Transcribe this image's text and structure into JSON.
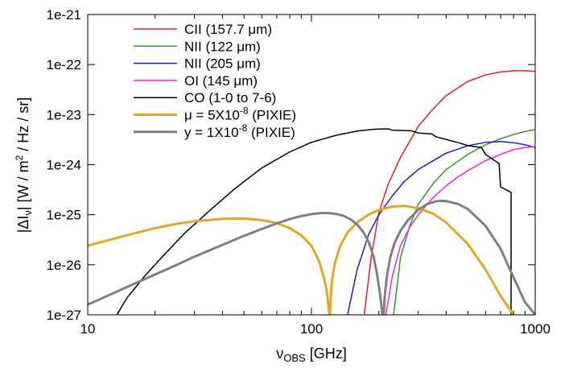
{
  "chart_data": {
    "type": "line",
    "xlabel": "ν",
    "xlabel_sub": "OBS",
    "xlabel_unit": "[GHz]",
    "ylabel": "|ΔI",
    "ylabel_sub": "ν",
    "ylabel_rest": "| [W / m",
    "ylabel_sup": "2",
    "ylabel_tail": " / Hz / sr]",
    "x_scale": "log",
    "y_scale": "log",
    "xlim": [
      10,
      1000
    ],
    "ylim": [
      1e-27,
      1e-21
    ],
    "x_ticks": [
      10,
      100,
      1000
    ],
    "x_tick_labels": [
      "10",
      "100",
      "1000"
    ],
    "y_ticks": [
      1e-27,
      1e-26,
      1e-25,
      1e-24,
      1e-23,
      1e-22,
      1e-21
    ],
    "y_tick_labels": [
      "1e-27",
      "1e-26",
      "1e-25",
      "1e-24",
      "1e-23",
      "1e-22",
      "1e-21"
    ],
    "grid": false,
    "legend_position": "top-left",
    "series": [
      {
        "name": "CII (157.7 μm)",
        "label_parts": [
          "CII (157.7 ",
          "μ",
          "m)"
        ],
        "color": "#e8201e",
        "stroke": 1.5,
        "x": [
          172,
          185,
          200,
          220,
          250,
          300,
          350,
          400,
          500,
          600,
          700,
          800,
          900,
          1000
        ],
        "y": [
          1e-27,
          1.4e-26,
          1.1e-25,
          4e-25,
          1.4e-24,
          5.8e-24,
          1.3e-23,
          2.4e-23,
          4.6e-23,
          6.2e-23,
          7.1e-23,
          7.5e-23,
          7.5e-23,
          7.3e-23
        ]
      },
      {
        "name": "NII (122 μm)",
        "label_parts": [
          "NII (122 ",
          "μ",
          "m)"
        ],
        "color": "#2e9a2e",
        "stroke": 1.5,
        "x": [
          233,
          250,
          275,
          300,
          350,
          400,
          500,
          600,
          700,
          800,
          900,
          1000
        ],
        "y": [
          1e-27,
          1.4e-26,
          6e-26,
          1.6e-25,
          4.2e-25,
          8e-25,
          1.6e-24,
          2.5e-24,
          3.3e-24,
          4e-24,
          4.6e-24,
          5e-24
        ]
      },
      {
        "name": "NII (205 μm)",
        "label_parts": [
          "NII (205 μm)"
        ],
        "color": "#1a1ae6",
        "stroke": 1.5,
        "x": [
          145,
          160,
          180,
          200,
          230,
          260,
          300,
          350,
          400,
          500,
          600,
          700,
          800,
          900,
          1000
        ],
        "y": [
          1e-27,
          8e-27,
          4e-26,
          1e-25,
          2.4e-25,
          4.6e-25,
          8e-25,
          1.2e-24,
          1.7e-24,
          2.4e-24,
          2.8e-24,
          2.9e-24,
          2.75e-24,
          2.5e-24,
          2.2e-24
        ]
      },
      {
        "name": "OI (145 μm)",
        "label_parts": [
          "OI (145 ",
          "μ",
          "m)"
        ],
        "color": "#ee22ee",
        "stroke": 1.5,
        "x": [
          215,
          230,
          250,
          275,
          300,
          350,
          400,
          450,
          500,
          600,
          700,
          800,
          900,
          1000
        ],
        "y": [
          1e-27,
          6e-27,
          2.4e-26,
          5.6e-26,
          1e-25,
          2.2e-25,
          3.8e-25,
          5.6e-25,
          7.6e-25,
          1.2e-24,
          1.6e-24,
          2e-24,
          2.2e-24,
          2.3e-24
        ]
      },
      {
        "name": "CO (1-0 to 7-6)",
        "label_parts": [
          "CO (1-0 to 7-6)"
        ],
        "color": "#000000",
        "stroke": 1.5,
        "x": [
          13.5,
          15,
          18,
          22,
          27,
          35,
          45,
          60,
          80,
          100,
          130,
          160,
          190,
          220,
          230,
          280,
          300,
          345,
          360,
          400,
          460,
          500,
          575,
          600,
          690,
          700,
          780,
          780
        ],
        "y": [
          1e-27,
          2.2e-27,
          6e-27,
          1.6e-26,
          4.2e-26,
          1.2e-25,
          3.2e-25,
          8.6e-25,
          1.8e-24,
          2.8e-24,
          3.9e-24,
          4.7e-24,
          5.1e-24,
          5.2e-24,
          4.9e-24,
          4.75e-24,
          4.3e-24,
          4.1e-24,
          3.6e-24,
          3.2e-24,
          2.7e-24,
          2.4e-24,
          2.2e-24,
          1.6e-24,
          1.05e-24,
          3.6e-25,
          2.8e-25,
          1e-27
        ]
      },
      {
        "name": "μ = 5X10^-8 (PIXIE)",
        "label_parts": [
          "μ = 5X10",
          "-8",
          " (PIXIE)"
        ],
        "color": "#e0a824",
        "stroke": 3,
        "x": [
          10,
          12,
          15,
          20,
          25,
          30,
          40,
          50,
          60,
          70,
          80,
          90,
          100,
          108,
          113,
          116,
          118,
          119.5,
          120.5,
          121,
          121.7,
          122.2,
          123,
          125,
          128,
          135,
          145,
          160,
          180,
          200,
          230,
          260,
          300,
          350,
          400,
          500,
          600,
          700,
          800
        ],
        "y": [
          2.4e-26,
          3e-26,
          3.9e-26,
          5.4e-26,
          6.6e-26,
          7.4e-26,
          8.3e-26,
          8.4e-26,
          7.8e-26,
          6.8e-26,
          5.4e-26,
          3.9e-26,
          2.4e-26,
          1.2e-26,
          6e-27,
          3.8e-27,
          2.3e-27,
          1.3e-27,
          1e-27,
          1e-27,
          1.8e-27,
          2.6e-27,
          4e-27,
          7e-27,
          1.2e-26,
          2.5e-26,
          4.4e-26,
          7e-26,
          1e-25,
          1.25e-25,
          1.45e-25,
          1.5e-25,
          1.35e-25,
          1.05e-25,
          7e-26,
          2.6e-26,
          8e-27,
          2.4e-27,
          1e-27
        ]
      },
      {
        "name": "y = 1X10^-8 (PIXIE)",
        "label_parts": [
          "y = 1X10",
          "-8",
          " (PIXIE)"
        ],
        "color": "#808080",
        "stroke": 3,
        "x": [
          10,
          12,
          15,
          20,
          25,
          30,
          40,
          50,
          60,
          70,
          80,
          90,
          100,
          110,
          120,
          130,
          140,
          150,
          160,
          170,
          180,
          190,
          197,
          202,
          205,
          207,
          208,
          209,
          210,
          211,
          212,
          214,
          218,
          225,
          235,
          250,
          270,
          300,
          330,
          360,
          380,
          400,
          450,
          500,
          600,
          700,
          800,
          900,
          1000
        ],
        "y": [
          1.6e-27,
          2.3e-27,
          3.6e-27,
          6.4e-27,
          1e-26,
          1.45e-26,
          2.5e-26,
          3.8e-26,
          5.2e-26,
          6.7e-26,
          8.2e-26,
          9.4e-26,
          1.03e-25,
          1.08e-25,
          1.08e-25,
          1.03e-25,
          9.4e-26,
          8e-26,
          6.4e-26,
          4.6e-26,
          2.9e-26,
          1.4e-26,
          6e-27,
          2.8e-27,
          1.7e-27,
          1.1e-27,
          1e-27,
          1e-27,
          1e-27,
          1.2e-27,
          2e-27,
          3.2e-27,
          6.4e-27,
          1.4e-26,
          2.7e-26,
          4.8e-26,
          7.8e-26,
          1.25e-25,
          1.65e-25,
          1.85e-25,
          1.9e-25,
          1.87e-25,
          1.65e-25,
          1.3e-25,
          6e-26,
          2.1e-26,
          5.6e-27,
          1.8e-27,
          1e-27
        ]
      }
    ]
  }
}
